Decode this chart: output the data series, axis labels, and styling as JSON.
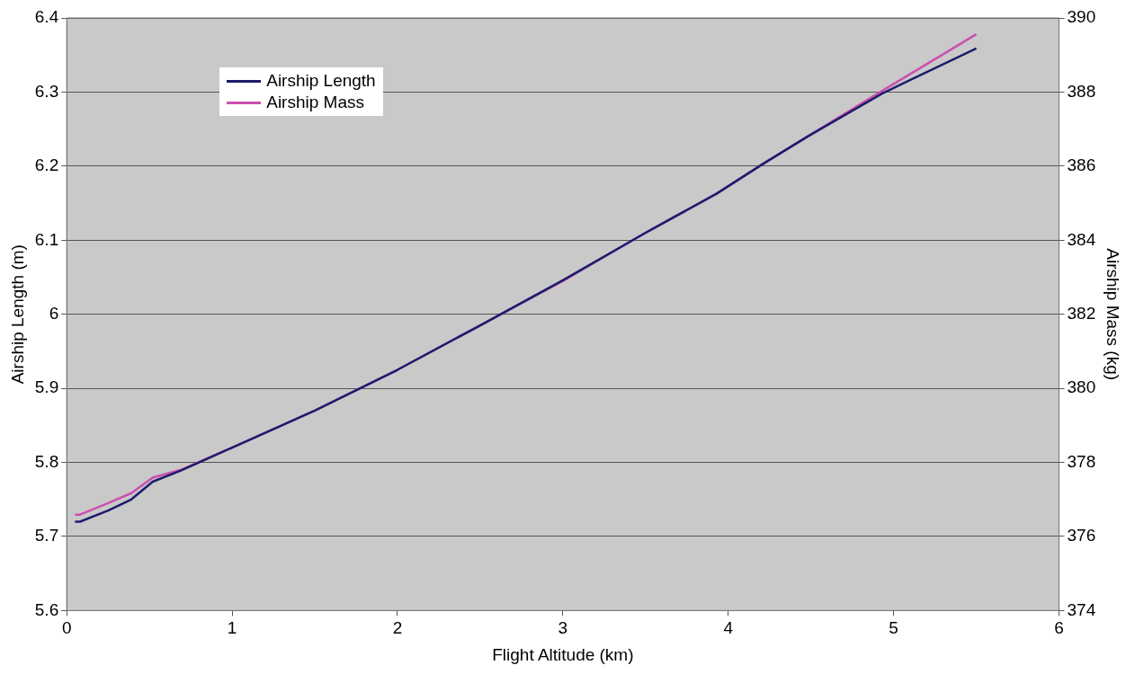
{
  "chart_data": {
    "type": "line",
    "xlabel": "Flight Altitude (km)",
    "ylabel": "Airship Length (m)",
    "y2label": "Airship Mass (kg)",
    "xlim": [
      0,
      6
    ],
    "xticks": [
      0,
      1,
      2,
      3,
      4,
      5,
      6
    ],
    "ylim": [
      5.6,
      6.4
    ],
    "yticks": [
      5.6,
      5.7,
      5.8,
      5.9,
      6,
      6.1,
      6.2,
      6.3,
      6.4
    ],
    "y2lim": [
      374,
      390
    ],
    "y2ticks": [
      374,
      376,
      378,
      380,
      382,
      384,
      386,
      388,
      390
    ],
    "grid": "y",
    "legend": "top left",
    "marker": "none",
    "line_style": "solid",
    "series": [
      {
        "name": "Airship Length",
        "color": "#1c1c6c",
        "x": [
          0.05,
          0.08,
          0.25,
          0.39,
          0.52,
          0.69,
          1.0,
          1.5,
          2.0,
          2.5,
          3.0,
          3.5,
          3.93,
          4.21,
          4.48,
          4.93,
          5.5
        ],
        "values": [
          5.72,
          5.72,
          5.735,
          5.75,
          5.774,
          5.789,
          5.82,
          5.87,
          5.925,
          5.985,
          6.046,
          6.11,
          6.163,
          6.203,
          6.24,
          6.298,
          6.359
        ]
      },
      {
        "name": "Airship Mass",
        "color": "#cc4fb0",
        "axis": "y2",
        "x": [
          0.05,
          0.08,
          0.25,
          0.39,
          0.52,
          0.69,
          1.0,
          1.5,
          2.0,
          2.5,
          3.0,
          3.5,
          3.93,
          4.21,
          4.48,
          4.93,
          5.5
        ],
        "values": [
          376.59,
          376.59,
          376.9,
          377.17,
          377.59,
          377.8,
          378.4,
          379.4,
          380.5,
          381.7,
          382.9,
          384.2,
          385.25,
          386.06,
          386.8,
          388.03,
          389.56
        ]
      }
    ]
  }
}
